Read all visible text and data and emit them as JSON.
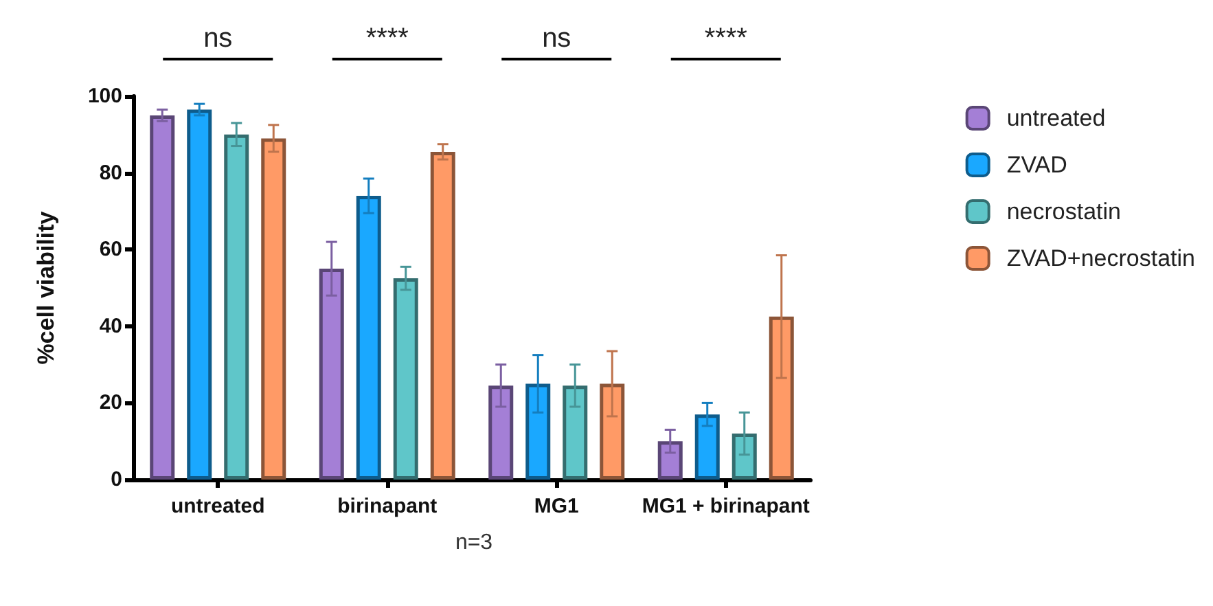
{
  "chart_data": {
    "type": "bar",
    "ylabel": "%cell viability",
    "categories": [
      "untreated",
      "birinapant",
      "MG1",
      "MG1 + birinapant"
    ],
    "series": [
      {
        "name": "untreated",
        "color": "#a47fd6",
        "values": [
          95,
          55,
          24.5,
          10
        ],
        "errors": [
          1.5,
          7,
          5.5,
          3
        ]
      },
      {
        "name": "ZVAD",
        "color": "#1aa8ff",
        "values": [
          96.5,
          74,
          25,
          17
        ],
        "errors": [
          1.5,
          4.5,
          7.5,
          3
        ]
      },
      {
        "name": "necrostatin",
        "color": "#5fc6c9",
        "values": [
          90,
          52.5,
          24.5,
          12
        ],
        "errors": [
          3,
          3,
          5.5,
          5.5
        ]
      },
      {
        "name": "ZVAD+necrostatin",
        "color": "#ff9a66",
        "values": [
          89,
          85.5,
          25,
          42.5
        ],
        "errors": [
          3.5,
          2,
          8.5,
          16
        ]
      }
    ],
    "ylim": [
      0,
      100
    ],
    "yticks": [
      0,
      20,
      40,
      60,
      80,
      100
    ],
    "grid": false,
    "legend": "top right",
    "annotations": [
      "ns",
      "****",
      "ns",
      "****",
      "n=3"
    ]
  }
}
